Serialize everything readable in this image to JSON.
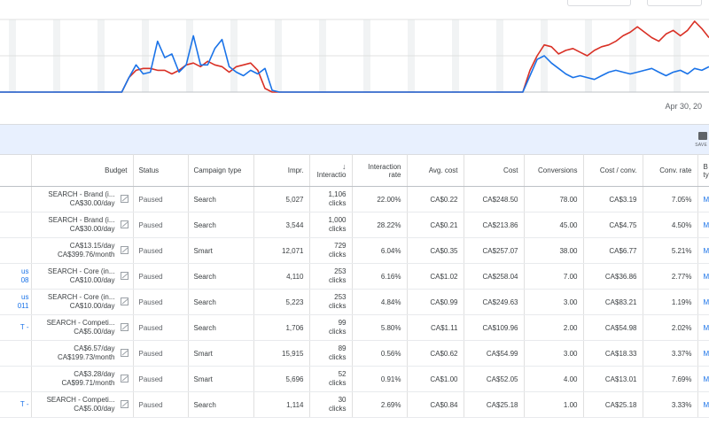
{
  "chart": {
    "date_label": "Apr 30, 20",
    "blue_series": [
      0,
      0,
      0,
      0,
      0,
      0,
      0,
      0,
      0,
      0,
      0,
      0,
      0,
      0,
      0,
      0,
      0,
      0,
      0.8,
      1.5,
      1,
      1.1,
      2.8,
      1.9,
      2.1,
      1.1,
      1.5,
      3.1,
      1.5,
      1.5,
      2.4,
      2.9,
      1.4,
      1.1,
      0.9,
      1.2,
      1.0,
      1.3,
      0.1,
      0,
      0,
      0,
      0,
      0,
      0,
      0,
      0,
      0,
      0,
      0,
      0,
      0,
      0,
      0,
      0,
      0,
      0,
      0,
      0,
      0,
      0,
      0,
      0,
      0,
      0,
      0,
      0,
      0,
      0,
      0,
      0,
      0,
      0,
      0,
      0.9,
      1.8,
      2.0,
      1.6,
      1.3,
      1.0,
      0.8,
      0.9,
      0.8,
      0.7,
      0.9,
      1.1,
      1.2,
      1.1,
      1.0,
      1.1,
      1.2,
      1.3,
      1.1,
      0.9,
      1.1,
      1.2,
      1.0,
      1.3,
      1.2,
      1.4
    ],
    "red_series": [
      0,
      0,
      0,
      0,
      0,
      0,
      0,
      0,
      0,
      0,
      0,
      0,
      0,
      0,
      0,
      0,
      0,
      0,
      0.8,
      1.2,
      1.3,
      1.3,
      1.2,
      1.2,
      1.0,
      1.2,
      1.5,
      1.6,
      1.4,
      1.7,
      1.5,
      1.4,
      1.1,
      1.4,
      1.5,
      1.6,
      1.2,
      0.2,
      0,
      0,
      0,
      0,
      0,
      0,
      0,
      0,
      0,
      0,
      0,
      0,
      0,
      0,
      0,
      0,
      0,
      0,
      0,
      0,
      0,
      0,
      0,
      0,
      0,
      0,
      0,
      0,
      0,
      0,
      0,
      0,
      0,
      0,
      0,
      0,
      1.2,
      2.0,
      2.6,
      2.5,
      2.1,
      2.3,
      2.4,
      2.2,
      2.0,
      2.3,
      2.5,
      2.6,
      2.8,
      3.1,
      3.3,
      3.6,
      3.3,
      3.0,
      2.8,
      3.2,
      3.4,
      3.1,
      3.4,
      3.9,
      3.5,
      3.0
    ]
  },
  "toolbar": {
    "save_label": "SAVE"
  },
  "table": {
    "headers": {
      "budget": "Budget",
      "status": "Status",
      "type": "Campaign type",
      "impr": "Impr.",
      "interactions": "Interactio",
      "rate_line1": "Interaction",
      "rate_line2": "rate",
      "avg_cost": "Avg. cost",
      "cost": "Cost",
      "conversions": "Conversions",
      "cost_conv": "Cost / conv.",
      "conv_rate": "Conv. rate",
      "last_line1": "B",
      "last_line2": "ty"
    },
    "rows": [
      {
        "name1": "",
        "name2": "",
        "budget1": "SEARCH - Brand (i...",
        "budget2": "CA$30.00/day",
        "status": "Paused",
        "type": "Search",
        "impr": "5,027",
        "inter1": "1,106",
        "inter2": "clicks",
        "rate": "22.00%",
        "avg": "CA$0.22",
        "cost": "CA$248.50",
        "conv": "78.00",
        "cpc": "CA$3.19",
        "crate": "7.05%",
        "last": "M"
      },
      {
        "name1": "",
        "name2": "",
        "budget1": "SEARCH - Brand (i...",
        "budget2": "CA$30.00/day",
        "status": "Paused",
        "type": "Search",
        "impr": "3,544",
        "inter1": "1,000",
        "inter2": "clicks",
        "rate": "28.22%",
        "avg": "CA$0.21",
        "cost": "CA$213.86",
        "conv": "45.00",
        "cpc": "CA$4.75",
        "crate": "4.50%",
        "last": "M"
      },
      {
        "name1": "",
        "name2": "",
        "budget1": "CA$13.15/day",
        "budget2": "CA$399.76/month",
        "status": "Paused",
        "type": "Smart",
        "impr": "12,071",
        "inter1": "729",
        "inter2": "clicks",
        "rate": "6.04%",
        "avg": "CA$0.35",
        "cost": "CA$257.07",
        "conv": "38.00",
        "cpc": "CA$6.77",
        "crate": "5.21%",
        "last": "M"
      },
      {
        "name1": "us",
        "name2": "08",
        "budget1": "SEARCH - Core (in...",
        "budget2": "CA$10.00/day",
        "status": "Paused",
        "type": "Search",
        "impr": "4,110",
        "inter1": "253",
        "inter2": "clicks",
        "rate": "6.16%",
        "avg": "CA$1.02",
        "cost": "CA$258.04",
        "conv": "7.00",
        "cpc": "CA$36.86",
        "crate": "2.77%",
        "last": "M"
      },
      {
        "name1": "us",
        "name2": "011",
        "budget1": "SEARCH - Core (in...",
        "budget2": "CA$10.00/day",
        "status": "Paused",
        "type": "Search",
        "impr": "5,223",
        "inter1": "253",
        "inter2": "clicks",
        "rate": "4.84%",
        "avg": "CA$0.99",
        "cost": "CA$249.63",
        "conv": "3.00",
        "cpc": "CA$83.21",
        "crate": "1.19%",
        "last": "M"
      },
      {
        "name1": "T -",
        "name2": "",
        "budget1": "SEARCH - Competi...",
        "budget2": "CA$5.00/day",
        "status": "Paused",
        "type": "Search",
        "impr": "1,706",
        "inter1": "99",
        "inter2": "clicks",
        "rate": "5.80%",
        "avg": "CA$1.11",
        "cost": "CA$109.96",
        "conv": "2.00",
        "cpc": "CA$54.98",
        "crate": "2.02%",
        "last": "M"
      },
      {
        "name1": "",
        "name2": "",
        "budget1": "CA$6.57/day",
        "budget2": "CA$199.73/month",
        "status": "Paused",
        "type": "Smart",
        "impr": "15,915",
        "inter1": "89",
        "inter2": "clicks",
        "rate": "0.56%",
        "avg": "CA$0.62",
        "cost": "CA$54.99",
        "conv": "3.00",
        "cpc": "CA$18.33",
        "crate": "3.37%",
        "last": "M"
      },
      {
        "name1": "",
        "name2": "",
        "budget1": "CA$3.28/day",
        "budget2": "CA$99.71/month",
        "status": "Paused",
        "type": "Smart",
        "impr": "5,696",
        "inter1": "52",
        "inter2": "clicks",
        "rate": "0.91%",
        "avg": "CA$1.00",
        "cost": "CA$52.05",
        "conv": "4.00",
        "cpc": "CA$13.01",
        "crate": "7.69%",
        "last": "M"
      },
      {
        "name1": "T -",
        "name2": "",
        "budget1": "SEARCH - Competi...",
        "budget2": "CA$5.00/day",
        "status": "Paused",
        "type": "Search",
        "impr": "1,114",
        "inter1": "30",
        "inter2": "clicks",
        "rate": "2.69%",
        "avg": "CA$0.84",
        "cost": "CA$25.18",
        "conv": "1.00",
        "cpc": "CA$25.18",
        "crate": "3.33%",
        "last": "M"
      }
    ]
  }
}
